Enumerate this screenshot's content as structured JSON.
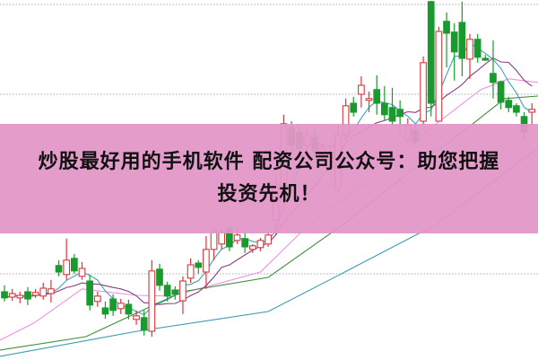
{
  "banner": {
    "line1": "炒股最好用的手机软件 配资公司公众号：助您把握",
    "line2": "投资先机！",
    "color": "#e296c8"
  },
  "chart_data": {
    "type": "candlestick",
    "title": "",
    "xlabel": "",
    "ylabel": "",
    "ylim": [
      0,
      100
    ],
    "grid": true,
    "grid_levels": [
      24,
      49,
      74,
      99
    ],
    "up_color": "#d9363e",
    "down_color": "#1a9a2e",
    "candles": [
      [
        19,
        17.3,
        20.8,
        16.3
      ],
      [
        17.5,
        18.5,
        19.8,
        16.5
      ],
      [
        17.3,
        18,
        19,
        15.8
      ],
      [
        19,
        17,
        20.3,
        15.3
      ],
      [
        18,
        18.8,
        19.8,
        17.3
      ],
      [
        17.8,
        20,
        21.5,
        16.8
      ],
      [
        18.5,
        19.8,
        22.3,
        16
      ],
      [
        26.3,
        24.5,
        27.8,
        23.3
      ],
      [
        23.8,
        27.8,
        33.8,
        22.3
      ],
      [
        28.3,
        24.8,
        29.5,
        24
      ],
      [
        23.3,
        25.5,
        27.3,
        22.3
      ],
      [
        22,
        15.3,
        23.8,
        13.8
      ],
      [
        16.3,
        17.8,
        19,
        14.8
      ],
      [
        14.5,
        12.8,
        16.3,
        11.5
      ],
      [
        17,
        13.8,
        18.3,
        12.3
      ],
      [
        14.3,
        15.8,
        17,
        12.8
      ],
      [
        15.5,
        12.8,
        16.8,
        11.3
      ],
      [
        11.3,
        12.3,
        13.8,
        9.8
      ],
      [
        11.8,
        8.3,
        13.8,
        6.8
      ],
      [
        8,
        24.8,
        27.8,
        6.5
      ],
      [
        25.3,
        20.8,
        26.8,
        19.3
      ],
      [
        20.8,
        17.8,
        21.8,
        16.3
      ],
      [
        19.5,
        18.3,
        20.5,
        16.8
      ],
      [
        16.5,
        22,
        23.3,
        12.8
      ],
      [
        22.8,
        26.5,
        28.3,
        21.5
      ],
      [
        27,
        25.8,
        27.8,
        24
      ],
      [
        24.5,
        30.8,
        34.5,
        19.8
      ],
      [
        30.8,
        35.8,
        37,
        27.8
      ],
      [
        32.3,
        35.5,
        36.5,
        30.8
      ],
      [
        36.5,
        31.5,
        37.3,
        30.3
      ],
      [
        33.3,
        34.8,
        36.5,
        32.3
      ],
      [
        33.8,
        31.5,
        35.3,
        29.8
      ],
      [
        30.8,
        31.8,
        32.3,
        29.8
      ],
      [
        31.3,
        33.3,
        34,
        30.3
      ],
      [
        32.3,
        34.8,
        35.8,
        31.5
      ],
      [
        39,
        49,
        51.5,
        34.8
      ],
      [
        44,
        65.8,
        68.3,
        42.8
      ],
      [
        64.8,
        59.8,
        66.5,
        57.8
      ],
      [
        63.3,
        58.8,
        65.3,
        57.3
      ],
      [
        59.8,
        62.3,
        64,
        58.3
      ],
      [
        62,
        58.3,
        63.8,
        56.3
      ],
      [
        57.3,
        59,
        60.3,
        55.8
      ],
      [
        56.5,
        57.8,
        59.8,
        55.3
      ],
      [
        47.8,
        62.8,
        65.3,
        46.5
      ],
      [
        62.8,
        70.8,
        72.8,
        61.3
      ],
      [
        71.5,
        69,
        73.3,
        67.8
      ],
      [
        74,
        76.5,
        79,
        70.3
      ],
      [
        72.3,
        72.8,
        74.8,
        69
      ],
      [
        75.3,
        71.5,
        79.3,
        68.3
      ],
      [
        71.5,
        68.3,
        76.3,
        66.8
      ],
      [
        70.3,
        66.5,
        75.8,
        65.3
      ],
      [
        69.8,
        67.8,
        72.3,
        62.8
      ],
      [
        61.5,
        65.3,
        67.3,
        60.3
      ],
      [
        64,
        60.8,
        65.8,
        59.8
      ],
      [
        66.5,
        82.8,
        84.5,
        65.3
      ],
      [
        99.8,
        71.5,
        100,
        67.8
      ],
      [
        66.5,
        91.5,
        92.8,
        66.5
      ],
      [
        94.3,
        91,
        96.8,
        81.5
      ],
      [
        91.3,
        85.8,
        93.8,
        77.8
      ],
      [
        94,
        84,
        99.8,
        79
      ],
      [
        83.8,
        89.3,
        90.8,
        78.3
      ],
      [
        89.3,
        84.3,
        90.8,
        82.8
      ],
      [
        84,
        83.5,
        85,
        83.3
      ],
      [
        79.8,
        77.3,
        89,
        72.8
      ],
      [
        77.5,
        71.8,
        77.8,
        69.8
      ],
      [
        72.3,
        70.3,
        73.3,
        69
      ],
      [
        70.8,
        69,
        71.5,
        67.8
      ],
      [
        67.8,
        63.5,
        69,
        61.5
      ],
      [
        69,
        69.8,
        71.5,
        65.3
      ]
    ],
    "candle_fields": [
      "open",
      "close",
      "high",
      "low"
    ],
    "moving_averages": [
      {
        "period_window": 5,
        "color": "#3aa3b5"
      },
      {
        "period_window": 10,
        "color": "#8b3d7d"
      }
    ],
    "long_lines": [
      {
        "color": "#ee90e4",
        "points": [
          [
            -0.6,
            5.5
          ],
          [
            3.8,
            10.3
          ],
          [
            10,
            19.8
          ],
          [
            17,
            18
          ],
          [
            21.6,
            17.8
          ],
          [
            33,
            24.5
          ],
          [
            39.3,
            37.8
          ],
          [
            47,
            50
          ],
          [
            54.3,
            63.5
          ],
          [
            61.4,
            75.3
          ],
          [
            65,
            78.3
          ],
          [
            68.8,
            77.3
          ]
        ]
      },
      {
        "color": "#3f8f3a",
        "points": [
          [
            -0.6,
            2.75
          ],
          [
            10.5,
            6.5
          ],
          [
            22.9,
            19
          ],
          [
            34,
            23
          ],
          [
            43.7,
            37.8
          ],
          [
            52,
            52
          ],
          [
            60.1,
            65.3
          ],
          [
            64.5,
            72.8
          ],
          [
            68.8,
            73.5
          ]
        ]
      },
      {
        "color": "#3a9bb0",
        "points": [
          [
            -0.6,
            1
          ],
          [
            17.1,
            8
          ],
          [
            34,
            13.5
          ],
          [
            43.7,
            24.3
          ],
          [
            55.7,
            37.8
          ],
          [
            62,
            48
          ],
          [
            68.8,
            59
          ]
        ]
      }
    ]
  }
}
